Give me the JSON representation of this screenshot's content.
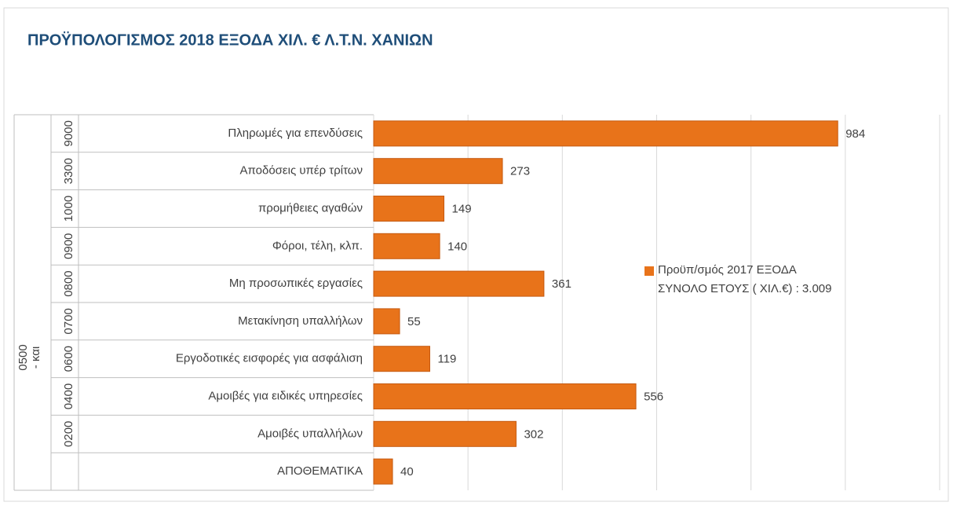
{
  "chart_data": {
    "type": "barh",
    "title": "ΠΡΟΫΠΟΛΟΓΙΣΜΟΣ 2018 ΕΞΟΔΑ ΧΙΛ. € Λ.Τ.Ν. ΧΑΝΙΩΝ",
    "group_label": [
      "0500",
      "- και"
    ],
    "codes": [
      "9000",
      "3300",
      "1000",
      "0900",
      "0800",
      "0700",
      "0600",
      "0400",
      "0200",
      null
    ],
    "categories": [
      "Πληρωμές για επενδύσεις",
      "Αποδόσεις υπέρ τρίτων",
      "προμήθειες  αγαθών",
      "Φόροι, τέλη, κλπ.",
      "Μη προσωπικές  εργασίες",
      "Μετακίνηση  υπαλλήλων",
      "Εργοδοτικές εισφορές για  ασφάλιση",
      "Αμοιβές για ειδικές υπηρεσίες",
      "Αμοιβές υπαλλήλων",
      "ΑΠΟΘΕΜΑΤΙΚΑ"
    ],
    "series": [
      {
        "name": "Προϋπ/σμός 2017 ΕΞΟΔΑ\nΣΥΝΟΛΟ ΕΤΟΥΣ ( ΧΙΛ.€)  :  3.009",
        "color": "#e8731a",
        "values": [
          984,
          273,
          149,
          140,
          361,
          55,
          119,
          556,
          302,
          40
        ]
      }
    ],
    "xlim": [
      0,
      1200
    ],
    "xticks": [
      0,
      200,
      400,
      600,
      800,
      1000,
      1200
    ],
    "grid": true
  }
}
